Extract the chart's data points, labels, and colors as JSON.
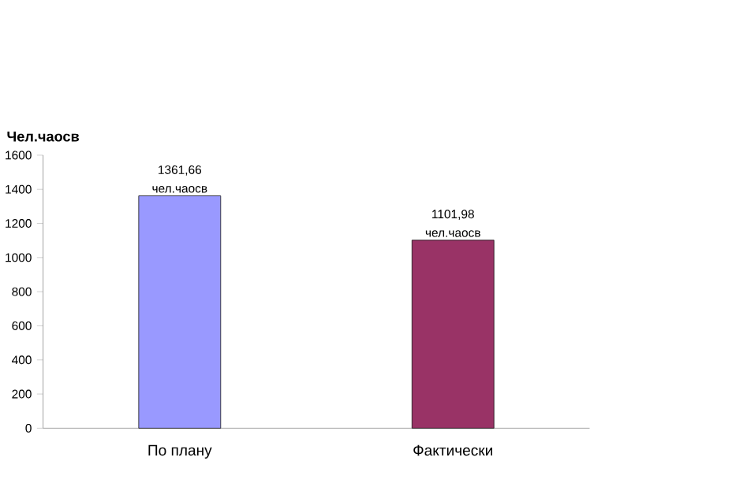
{
  "chart_data": {
    "type": "bar",
    "ylabel": "Чел.чаосв",
    "categories": [
      "По плану",
      "Фактически"
    ],
    "values": [
      1361.66,
      1101.98
    ],
    "colors": [
      "#9999ff",
      "#993366"
    ],
    "value_labels": [
      "1361,66 чел.чаосв",
      "1101,98 чел.чаосв"
    ],
    "ylim": [
      0,
      1600
    ],
    "yticks": [
      0,
      200,
      400,
      600,
      800,
      1000,
      1200,
      1400,
      1600
    ]
  }
}
